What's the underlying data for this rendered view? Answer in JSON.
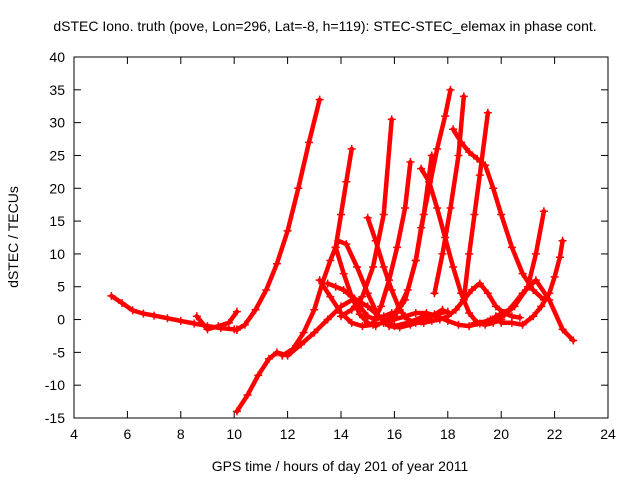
{
  "chart_data": {
    "type": "scatter",
    "title": "dSTEC Iono. truth (pove, Lon=296, Lat=-8, h=119): STEC-STEC_elemax in phase cont.",
    "xlabel": "GPS time / hours of day 201 of year 2011",
    "ylabel": "dSTEC  / TECUs",
    "xlim": [
      4,
      24
    ],
    "ylim": [
      -15,
      40
    ],
    "xticks": [
      4,
      6,
      8,
      10,
      12,
      14,
      16,
      18,
      20,
      22,
      24
    ],
    "yticks": [
      -15,
      -10,
      -5,
      0,
      5,
      10,
      15,
      20,
      25,
      30,
      35,
      40
    ],
    "grid": false,
    "legend": "none",
    "marker": "plus",
    "color": "#ff0000",
    "series": [
      {
        "x": [
          5.4,
          5.8,
          6.2,
          6.6,
          7.0,
          7.5,
          8.0,
          8.5,
          9.0,
          9.5,
          10.0,
          10.1
        ],
        "y": [
          3.6,
          2.5,
          1.4,
          0.9,
          0.6,
          0.2,
          -0.2,
          -0.6,
          -1.0,
          -1.3,
          -1.5,
          -1.6
        ]
      },
      {
        "x": [
          8.6,
          9.0,
          9.4,
          9.8,
          10.1
        ],
        "y": [
          0.5,
          -1.5,
          -1.0,
          -0.5,
          1.2
        ]
      },
      {
        "x": [
          10.1,
          10.4,
          10.8,
          11.2,
          11.6,
          12.0,
          12.4,
          12.8,
          13.2
        ],
        "y": [
          -1.5,
          -0.8,
          1.5,
          4.5,
          8.5,
          13.5,
          20.0,
          27.0,
          33.5
        ]
      },
      {
        "x": [
          10.1,
          10.5,
          10.9,
          11.3,
          11.6,
          12.0,
          12.5,
          13.0,
          13.5,
          14.0,
          14.5,
          15.0,
          15.5,
          16.0,
          16.5,
          17.0,
          17.5,
          18.0
        ],
        "y": [
          -14.0,
          -11.5,
          -8.5,
          -6.0,
          -5.0,
          -5.5,
          -3.8,
          -2.0,
          0.0,
          2.0,
          3.2,
          2.0,
          0.2,
          -1.0,
          -0.5,
          0.3,
          0.8,
          1.2
        ]
      },
      {
        "x": [
          11.8,
          12.2,
          12.6,
          13.0,
          13.3,
          13.6,
          13.9,
          14.2,
          14.6,
          15.0,
          15.4,
          15.8,
          16.2,
          16.6,
          17.0,
          17.4,
          17.8
        ],
        "y": [
          -5.5,
          -4.5,
          -2.0,
          1.5,
          5.5,
          9.0,
          12.0,
          11.5,
          8.0,
          4.0,
          0.5,
          -1.0,
          -1.2,
          -0.8,
          -0.3,
          0.5,
          1.5
        ]
      },
      {
        "x": [
          13.2,
          13.6,
          14.0,
          14.4,
          14.8,
          15.2,
          15.6,
          16.0,
          16.4,
          16.8,
          17.2,
          17.6,
          18.0,
          18.4,
          18.8,
          19.2,
          19.6,
          20.0
        ],
        "y": [
          6.0,
          3.5,
          1.0,
          -0.5,
          -1.0,
          -0.8,
          -0.5,
          0.0,
          0.5,
          1.0,
          1.0,
          0.5,
          -0.2,
          -0.8,
          -1.0,
          -0.6,
          0.0,
          0.5
        ]
      },
      {
        "x": [
          13.5,
          13.8,
          14.1,
          14.4,
          14.7,
          15.0,
          15.3,
          15.6,
          15.9
        ],
        "y": [
          5.5,
          5.0,
          4.5,
          3.5,
          2.0,
          0.5,
          0.0,
          0.5,
          1.0
        ]
      },
      {
        "x": [
          13.8,
          14.0,
          14.2,
          14.4
        ],
        "y": [
          11.0,
          16.0,
          21.0,
          26.0
        ]
      },
      {
        "x": [
          13.8,
          14.1,
          14.4,
          14.7,
          15.0,
          15.3
        ],
        "y": [
          11.0,
          7.0,
          3.5,
          0.8,
          -0.5,
          -1.0
        ]
      },
      {
        "x": [
          14.0,
          14.4,
          14.8,
          15.2,
          15.6,
          15.9
        ],
        "y": [
          0.5,
          1.5,
          3.5,
          8.0,
          16.0,
          30.5
        ]
      },
      {
        "x": [
          15.0,
          15.3,
          15.6,
          15.9,
          16.2,
          16.5,
          16.8,
          17.1,
          17.4,
          17.7,
          18.0,
          18.3,
          18.6,
          18.9,
          19.2,
          19.5,
          19.8,
          20.1,
          20.4,
          20.7
        ],
        "y": [
          15.5,
          12.0,
          8.0,
          4.5,
          1.5,
          0.0,
          -0.5,
          -0.5,
          -0.2,
          0.0,
          0.5,
          1.5,
          3.0,
          4.5,
          5.5,
          4.0,
          2.0,
          1.0,
          0.5,
          0.3
        ]
      },
      {
        "x": [
          15.2,
          15.5,
          15.8,
          16.1,
          16.4,
          16.6
        ],
        "y": [
          -0.5,
          2.0,
          6.0,
          11.0,
          17.0,
          24.0
        ]
      },
      {
        "x": [
          15.6,
          15.9,
          16.2,
          16.5,
          16.8,
          17.1,
          17.4
        ],
        "y": [
          -0.5,
          0.5,
          2.0,
          4.5,
          9.0,
          16.0,
          25.0
        ]
      },
      {
        "x": [
          16.0,
          16.4,
          16.8,
          17.0,
          17.3,
          17.6,
          17.9,
          18.1
        ],
        "y": [
          0.5,
          3.0,
          9.0,
          14.0,
          20.0,
          26.0,
          31.0,
          35.0
        ]
      },
      {
        "x": [
          17.0,
          17.3,
          17.6,
          17.9,
          18.2,
          18.5,
          18.8,
          19.1,
          19.4,
          19.7,
          20.0
        ],
        "y": [
          23.0,
          21.0,
          17.0,
          12.5,
          8.0,
          4.0,
          1.0,
          -0.5,
          -0.8,
          -0.5,
          0.0
        ]
      },
      {
        "x": [
          17.5,
          17.8,
          18.1,
          18.4,
          18.6
        ],
        "y": [
          4.0,
          10.0,
          17.0,
          25.0,
          34.0
        ]
      },
      {
        "x": [
          18.2,
          18.5,
          18.8,
          19.1,
          19.4,
          19.7,
          20.0,
          20.4,
          20.8,
          21.2,
          21.6
        ],
        "y": [
          29.0,
          27.0,
          25.5,
          24.5,
          23.5,
          20.0,
          16.0,
          11.0,
          7.0,
          4.5,
          3.0
        ]
      },
      {
        "x": [
          18.6,
          18.8,
          19.0,
          19.2,
          19.5
        ],
        "y": [
          3.0,
          10.0,
          16.0,
          22.0,
          31.5
        ]
      },
      {
        "x": [
          19.0,
          19.5,
          20.0,
          20.5,
          21.0,
          21.3,
          21.6
        ],
        "y": [
          -0.5,
          -0.3,
          0.3,
          2.0,
          5.0,
          10.0,
          16.5
        ]
      },
      {
        "x": [
          19.8,
          20.3,
          20.8,
          21.3,
          21.8,
          22.3,
          22.7
        ],
        "y": [
          0.5,
          1.5,
          4.0,
          6.0,
          3.0,
          -1.5,
          -3.2
        ]
      },
      {
        "x": [
          20.0,
          20.4,
          20.8,
          21.2,
          21.5,
          21.8,
          22.0,
          22.2,
          22.3
        ],
        "y": [
          -0.5,
          -0.5,
          -0.8,
          0.5,
          2.0,
          4.0,
          6.5,
          9.5,
          12.0
        ]
      }
    ]
  }
}
